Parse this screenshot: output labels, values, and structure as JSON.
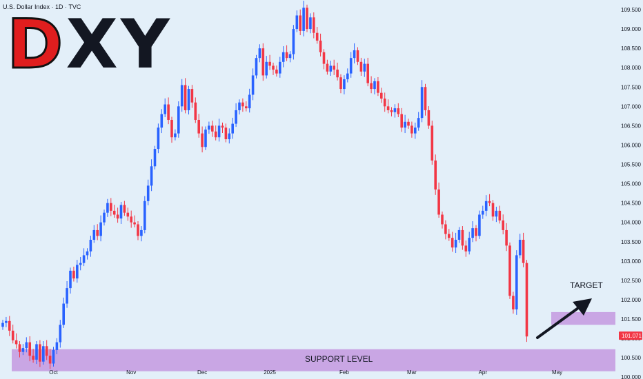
{
  "header": {
    "symbol_info": "U.S. Dollar Index · 1D · TVC"
  },
  "logo": {
    "d": "D",
    "rest": "XY"
  },
  "colors": {
    "up": "#2962ff",
    "down": "#f23645",
    "zone": "#c9a6e4",
    "bg": "#e3eff9",
    "tag": "#f23645"
  },
  "current_price": {
    "label": "101.071",
    "value": 101.071
  },
  "annotations": {
    "support": "SUPPORT LEVEL",
    "target": "TARGET"
  },
  "zones": {
    "support": {
      "from_idx": 0,
      "to_idx": 192,
      "low": 100.15,
      "high": 100.72
    },
    "target": {
      "from_idx": 153,
      "to_idx": 165,
      "low": 101.35,
      "high": 101.68
    }
  },
  "chart_data": {
    "type": "candlestick",
    "title": "U.S. Dollar Index · 1D · TVC",
    "ylim": [
      99.95,
      109.75
    ],
    "y_ticks": [
      "109.500",
      "109.000",
      "108.500",
      "108.000",
      "107.500",
      "107.000",
      "106.500",
      "106.000",
      "105.500",
      "105.000",
      "104.500",
      "104.000",
      "103.500",
      "103.000",
      "102.500",
      "102.000",
      "101.500",
      "101.000",
      "100.500",
      "100.000"
    ],
    "x_ticks": [
      {
        "label": "Oct",
        "idx": 15
      },
      {
        "label": "Nov",
        "idx": 38
      },
      {
        "label": "Dec",
        "idx": 59
      },
      {
        "label": "2025",
        "idx": 79
      },
      {
        "label": "Feb",
        "idx": 101
      },
      {
        "label": "Mar",
        "idx": 121
      },
      {
        "label": "Apr",
        "idx": 142
      },
      {
        "label": "May",
        "idx": 164
      }
    ],
    "candles_close": [
      101.4,
      101.45,
      101.2,
      100.95,
      100.85,
      100.65,
      100.75,
      100.9,
      100.55,
      100.45,
      100.85,
      100.4,
      100.8,
      100.55,
      100.35,
      100.7,
      100.9,
      101.35,
      101.9,
      102.3,
      102.75,
      102.55,
      102.9,
      102.95,
      103.15,
      103.25,
      103.55,
      103.8,
      103.65,
      104.0,
      104.25,
      104.5,
      104.3,
      104.2,
      104.1,
      104.45,
      104.25,
      104.15,
      104.0,
      103.95,
      103.65,
      103.8,
      104.55,
      104.95,
      105.45,
      105.9,
      106.45,
      106.8,
      107.05,
      106.65,
      106.2,
      106.3,
      107.0,
      107.55,
      106.9,
      107.45,
      107.1,
      106.65,
      106.3,
      105.95,
      106.4,
      106.5,
      106.35,
      106.2,
      106.5,
      106.45,
      106.15,
      106.3,
      106.55,
      106.9,
      107.1,
      107.0,
      106.95,
      107.3,
      107.8,
      108.25,
      108.5,
      107.8,
      108.15,
      108.05,
      107.95,
      107.85,
      108.15,
      108.4,
      108.25,
      108.35,
      109.0,
      109.35,
      108.95,
      109.55,
      109.0,
      109.3,
      108.9,
      108.7,
      108.4,
      108.1,
      107.9,
      108.05,
      107.95,
      107.75,
      107.45,
      107.7,
      107.85,
      108.25,
      108.45,
      108.15,
      107.9,
      108.1,
      107.6,
      107.45,
      107.65,
      107.35,
      107.2,
      107.0,
      106.9,
      106.85,
      106.95,
      106.8,
      106.45,
      106.6,
      106.5,
      106.3,
      106.45,
      106.7,
      107.5,
      106.9,
      106.5,
      105.6,
      104.85,
      104.2,
      103.95,
      103.7,
      103.6,
      103.35,
      103.55,
      103.8,
      103.4,
      103.25,
      103.6,
      103.85,
      103.65,
      104.2,
      104.3,
      104.55,
      104.5,
      104.15,
      104.3,
      104.05,
      103.8,
      103.4,
      102.1,
      101.75,
      103.15,
      103.55,
      102.95,
      101.05
    ]
  }
}
